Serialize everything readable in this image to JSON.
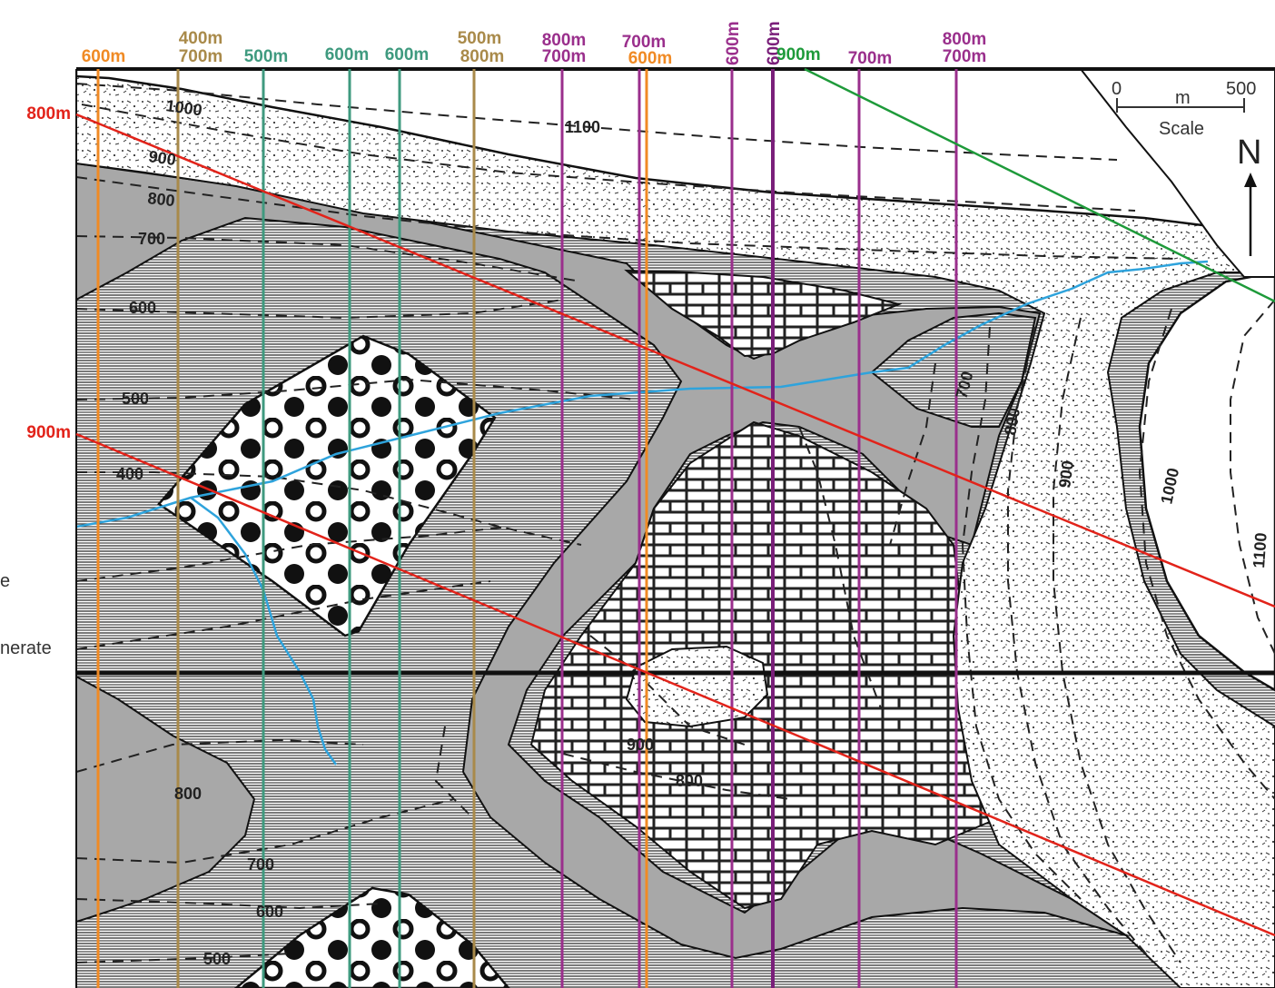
{
  "map": {
    "colors": {
      "orange": "#f08a24",
      "teal": "#3f9a7f",
      "olive": "#a98a4a",
      "purple": "#9a2f8c",
      "dark_purple": "#7a1f7a",
      "red": "#e2231a",
      "green": "#1e9a3a",
      "blue": "#2ea3dc",
      "gray_fill": "#a8a8a8"
    },
    "vertical_sections": [
      {
        "labels": [
          "600m"
        ],
        "color": "orange"
      },
      {
        "labels": [
          "400m",
          "700m"
        ],
        "color": "olive"
      },
      {
        "labels": [
          "500m"
        ],
        "color": "teal"
      },
      {
        "labels": [
          "600m"
        ],
        "color": "teal"
      },
      {
        "labels": [
          "600m"
        ],
        "color": "teal"
      },
      {
        "labels": [
          "500m",
          "800m"
        ],
        "color": "olive"
      },
      {
        "labels": [
          "800m",
          "700m"
        ],
        "color": "purple"
      },
      {
        "labels": [
          "700m"
        ],
        "color": "purple"
      },
      {
        "labels": [
          "600m"
        ],
        "color": "orange"
      },
      {
        "labels": [
          "600m"
        ],
        "color": "purple"
      },
      {
        "labels": [
          "600m"
        ],
        "color": "dark_purple"
      },
      {
        "labels": [
          "700m"
        ],
        "color": "purple"
      },
      {
        "labels": [
          "800m",
          "700m"
        ],
        "color": "purple"
      }
    ],
    "diagonal_sections": [
      {
        "label": "800m",
        "color": "red"
      },
      {
        "label": "900m",
        "color": "red"
      },
      {
        "label": "900m",
        "color": "green"
      }
    ],
    "contour_labels": [
      "1000",
      "1100",
      "900",
      "800",
      "700",
      "600",
      "500",
      "400",
      "800",
      "700",
      "600",
      "500",
      "700",
      "800",
      "900",
      "1000",
      "1100",
      "900",
      "800"
    ],
    "legend_partial": [
      "e",
      "nerate"
    ],
    "scale": {
      "start": "0",
      "end": "500",
      "unit": "m",
      "caption": "Scale"
    },
    "north": "N"
  }
}
